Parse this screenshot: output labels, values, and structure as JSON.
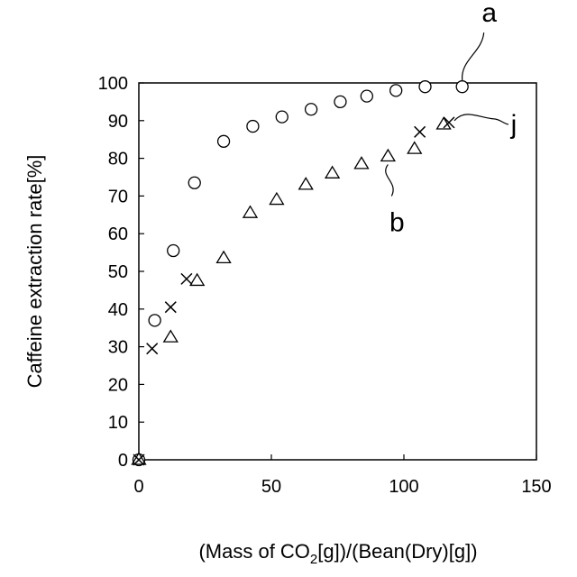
{
  "chart_data": {
    "type": "scatter",
    "title": "",
    "xlabel": "(Mass of CO₂[g])/(Bean(Dry)[g])",
    "xlabel_parts": {
      "before_sub": "(Mass of CO",
      "sub": "2",
      "after_sub": "[g])/(Bean(Dry)[g])"
    },
    "ylabel": "Caffeine extraction rate[%]",
    "xlim": [
      0,
      150
    ],
    "ylim": [
      0,
      100
    ],
    "x_ticks": [
      0,
      50,
      100,
      150
    ],
    "y_ticks": [
      0,
      10,
      20,
      30,
      40,
      50,
      60,
      70,
      80,
      90,
      100
    ],
    "grid": false,
    "legend": "none",
    "series": [
      {
        "label": "a",
        "marker": "circle",
        "points": [
          [
            0,
            0
          ],
          [
            6,
            37
          ],
          [
            13,
            55.5
          ],
          [
            21,
            73.5
          ],
          [
            32,
            84.5
          ],
          [
            43,
            88.5
          ],
          [
            54,
            91
          ],
          [
            65,
            93
          ],
          [
            76,
            95
          ],
          [
            86,
            96.5
          ],
          [
            97,
            98
          ],
          [
            108,
            99
          ],
          [
            122,
            99
          ]
        ]
      },
      {
        "label": "b",
        "marker": "triangle",
        "points": [
          [
            0,
            0
          ],
          [
            12,
            32.5
          ],
          [
            22,
            47.5
          ],
          [
            32,
            53.5
          ],
          [
            42,
            65.5
          ],
          [
            52,
            69
          ],
          [
            63,
            73
          ],
          [
            73,
            76
          ],
          [
            84,
            78.5
          ],
          [
            94,
            80.5
          ],
          [
            104,
            82.5
          ],
          [
            115,
            89
          ]
        ]
      },
      {
        "label": "j",
        "marker": "cross",
        "points": [
          [
            0,
            0
          ],
          [
            5,
            29.5
          ],
          [
            12,
            40.5
          ],
          [
            18,
            48
          ],
          [
            106,
            87
          ],
          [
            117,
            89.5
          ]
        ]
      }
    ],
    "callouts": [
      {
        "text": "a",
        "series": "a"
      },
      {
        "text": "b",
        "series": "b"
      },
      {
        "text": "j",
        "series": "j"
      }
    ]
  }
}
